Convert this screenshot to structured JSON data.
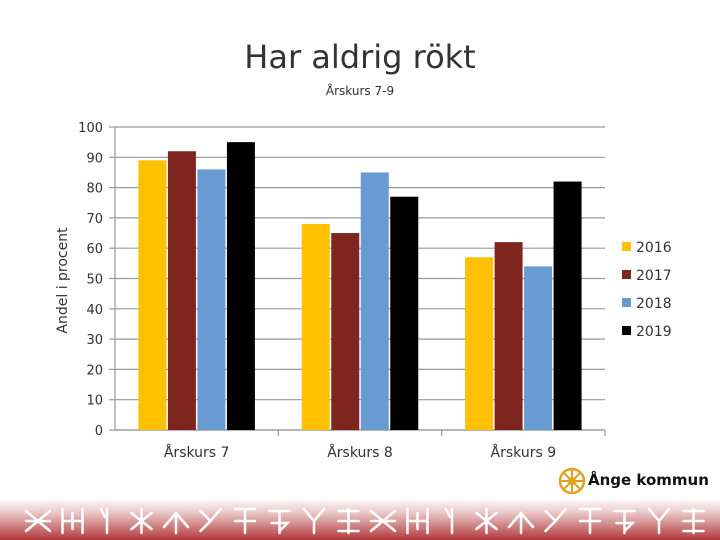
{
  "chart_data": {
    "type": "bar",
    "title": "Har aldrig rökt",
    "subtitle": "Årskurs 7-9",
    "ylabel": "Andel i procent",
    "xlabel": "",
    "categories": [
      "Årskurs 7",
      "Årskurs 8",
      "Årskurs 9"
    ],
    "ylim": [
      0,
      100
    ],
    "yticks": [
      0,
      10,
      20,
      30,
      40,
      50,
      60,
      70,
      80,
      90,
      100
    ],
    "grid": true,
    "legend_position": "right",
    "series": [
      {
        "name": "2016",
        "color": "#FFC000",
        "values": [
          89,
          68,
          57
        ]
      },
      {
        "name": "2017",
        "color": "#7F2520",
        "values": [
          92,
          65,
          62
        ]
      },
      {
        "name": "2018",
        "color": "#6A9BD0",
        "values": [
          86,
          85,
          54
        ]
      },
      {
        "name": "2019",
        "color": "#000000",
        "values": [
          95,
          77,
          82
        ]
      }
    ]
  },
  "logo": {
    "text": "Ånge kommun",
    "icon": "sun-emblem-icon",
    "color": "#E0A020"
  },
  "border": {
    "icon": "runic-border-pattern",
    "color": "#A8272B"
  }
}
